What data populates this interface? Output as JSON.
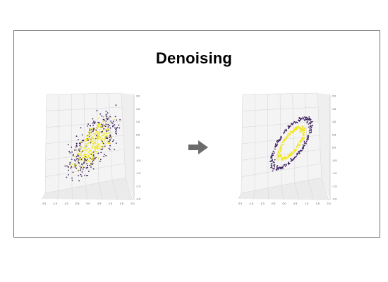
{
  "title": "Denoising",
  "colors": {
    "inner_points": "#f2e61a",
    "outer_points": "#3b1e5c",
    "arrow": "#6b6b6b",
    "grid": "#d9d9d9",
    "pane": "#f4f4f4"
  },
  "arrow_icon": "right-arrow-icon",
  "plots": [
    {
      "name": "noisy-input",
      "type": "3d-scatter",
      "description_shape": "noisy ellipse",
      "x_ticks": [
        "-2.0",
        "-1.5",
        "-1.0",
        "-0.5",
        "0.0",
        "0.5",
        "1.0",
        "1.5",
        "2.0"
      ],
      "z_ticks": [
        "2.0",
        "1.5",
        "1.0",
        "0.5",
        "0.0",
        "-0.5",
        "-1.0",
        "-1.5",
        "-2.0"
      ]
    },
    {
      "name": "denoised-output",
      "type": "3d-scatter",
      "description_shape": "clean concentric rings",
      "x_ticks": [
        "-2.0",
        "-1.5",
        "-1.0",
        "-0.5",
        "0.0",
        "0.5",
        "1.0",
        "1.5",
        "2.0"
      ],
      "z_ticks": [
        "2.0",
        "1.5",
        "1.0",
        "0.5",
        "0.0",
        "-0.5",
        "-1.0",
        "-1.5",
        "-2.0"
      ]
    }
  ]
}
